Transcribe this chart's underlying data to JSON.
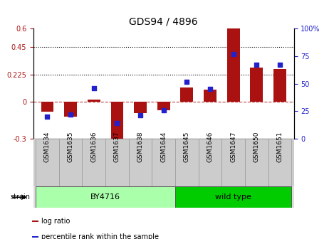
{
  "title": "GDS94 / 4896",
  "categories": [
    "GSM1634",
    "GSM1635",
    "GSM1636",
    "GSM1637",
    "GSM1638",
    "GSM1644",
    "GSM1645",
    "GSM1646",
    "GSM1647",
    "GSM1650",
    "GSM1651"
  ],
  "log_ratio": [
    -0.08,
    -0.12,
    0.02,
    -0.35,
    -0.09,
    -0.07,
    0.12,
    0.1,
    0.6,
    0.28,
    0.27
  ],
  "percentile": [
    20,
    22,
    46,
    14,
    21,
    26,
    52,
    45,
    77,
    67,
    67
  ],
  "bar_color": "#aa1111",
  "dot_color": "#2222cc",
  "ylim_left": [
    -0.3,
    0.6
  ],
  "ylim_right": [
    0,
    100
  ],
  "yticks_left": [
    -0.3,
    0,
    0.225,
    0.45,
    0.6
  ],
  "yticks_right": [
    0,
    25,
    50,
    75,
    100
  ],
  "hlines": [
    0.225,
    0.45
  ],
  "hline_zero": 0,
  "strain_groups": [
    {
      "label": "BY4716",
      "start": 0,
      "end": 5,
      "color": "#aaffaa"
    },
    {
      "label": "wild type",
      "start": 5,
      "end": 10,
      "color": "#00cc00"
    }
  ],
  "strain_label": "strain",
  "legend_entries": [
    "log ratio",
    "percentile rank within the sample"
  ],
  "background_color": "#ffffff",
  "plot_bg_color": "#ffffff",
  "title_fontsize": 10,
  "tick_fontsize": 7,
  "label_fontsize": 8
}
